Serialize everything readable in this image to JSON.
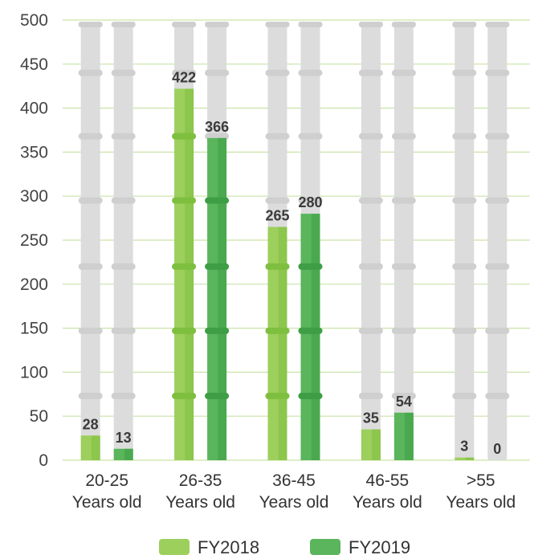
{
  "chart_data": {
    "type": "bar",
    "title": "",
    "xlabel": "",
    "ylabel": "",
    "ylim": [
      0,
      500
    ],
    "yticks": [
      0,
      50,
      100,
      150,
      200,
      250,
      300,
      350,
      400,
      450,
      500
    ],
    "grid": true,
    "legend_position": "bottom",
    "categories": [
      [
        "20-25",
        "Years old"
      ],
      [
        "26-35",
        "Years old"
      ],
      [
        "36-45",
        "Years old"
      ],
      [
        "46-55",
        "Years old"
      ],
      [
        ">55",
        "Years old"
      ]
    ],
    "series": [
      {
        "name": "FY2018",
        "values": [
          28,
          422,
          265,
          35,
          3
        ],
        "color": "#9ccf5c",
        "dark": "#7fbf3f"
      },
      {
        "name": "FY2019",
        "values": [
          13,
          366,
          280,
          54,
          0
        ],
        "color": "#5ab55c",
        "dark": "#3e9e45"
      }
    ],
    "colors": {
      "track": "#dcdcdc",
      "track_joint": "#cfcfcf",
      "grid": "#c9e3a8"
    }
  }
}
